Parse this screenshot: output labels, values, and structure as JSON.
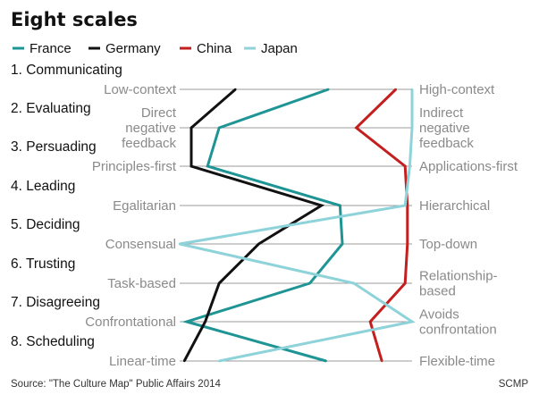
{
  "title": "Eight scales",
  "legend": [
    {
      "name": "France",
      "color": "#1e9494"
    },
    {
      "name": "Germany",
      "color": "#111111"
    },
    {
      "name": "China",
      "color": "#c41e1e"
    },
    {
      "name": "Japan",
      "color": "#8ed3d9"
    }
  ],
  "chart_data": {
    "type": "line",
    "orientation": "horizontal-profile",
    "title": "Eight scales",
    "scales": [
      {
        "label": "1. Communicating",
        "left": [
          "Low-context"
        ],
        "right": [
          "High-context"
        ]
      },
      {
        "label": "2. Evaluating",
        "left": [
          "Direct",
          "negative",
          "feedback"
        ],
        "right": [
          "Indirect",
          "negative",
          "feedback"
        ]
      },
      {
        "label": "3. Persuading",
        "left": [
          "Principles-first"
        ],
        "right": [
          "Applications-first"
        ]
      },
      {
        "label": "4. Leading",
        "left": [
          "Egalitarian"
        ],
        "right": [
          "Hierarchical"
        ]
      },
      {
        "label": "5. Deciding",
        "left": [
          "Consensual"
        ],
        "right": [
          "Top-down"
        ]
      },
      {
        "label": "6. Trusting",
        "left": [
          "Task-based"
        ],
        "right": [
          "Relationship-",
          "based"
        ]
      },
      {
        "label": "7. Disagreeing",
        "left": [
          "Confrontational"
        ],
        "right": [
          "Avoids",
          "confrontation"
        ]
      },
      {
        "label": "8. Scheduling",
        "left": [
          "Linear-time"
        ],
        "right": [
          "Flexible-time"
        ]
      }
    ],
    "x_range": [
      0,
      100
    ],
    "series": [
      {
        "name": "France",
        "color": "#1e9494",
        "values": [
          64,
          17,
          12,
          69,
          70,
          56,
          3,
          63
        ]
      },
      {
        "name": "Germany",
        "color": "#111111",
        "values": [
          24,
          5,
          5,
          61,
          34,
          17,
          11,
          2
        ]
      },
      {
        "name": "China",
        "color": "#c41e1e",
        "values": [
          93,
          76,
          97,
          98,
          98,
          97,
          82,
          87
        ]
      },
      {
        "name": "Japan",
        "color": "#8ed3d9",
        "values": [
          100,
          100,
          99,
          97,
          0,
          75,
          100,
          17
        ]
      }
    ]
  },
  "footer": {
    "source": "Source: \"The Culture Map\" Public Affairs 2014",
    "credit": "SCMP"
  }
}
